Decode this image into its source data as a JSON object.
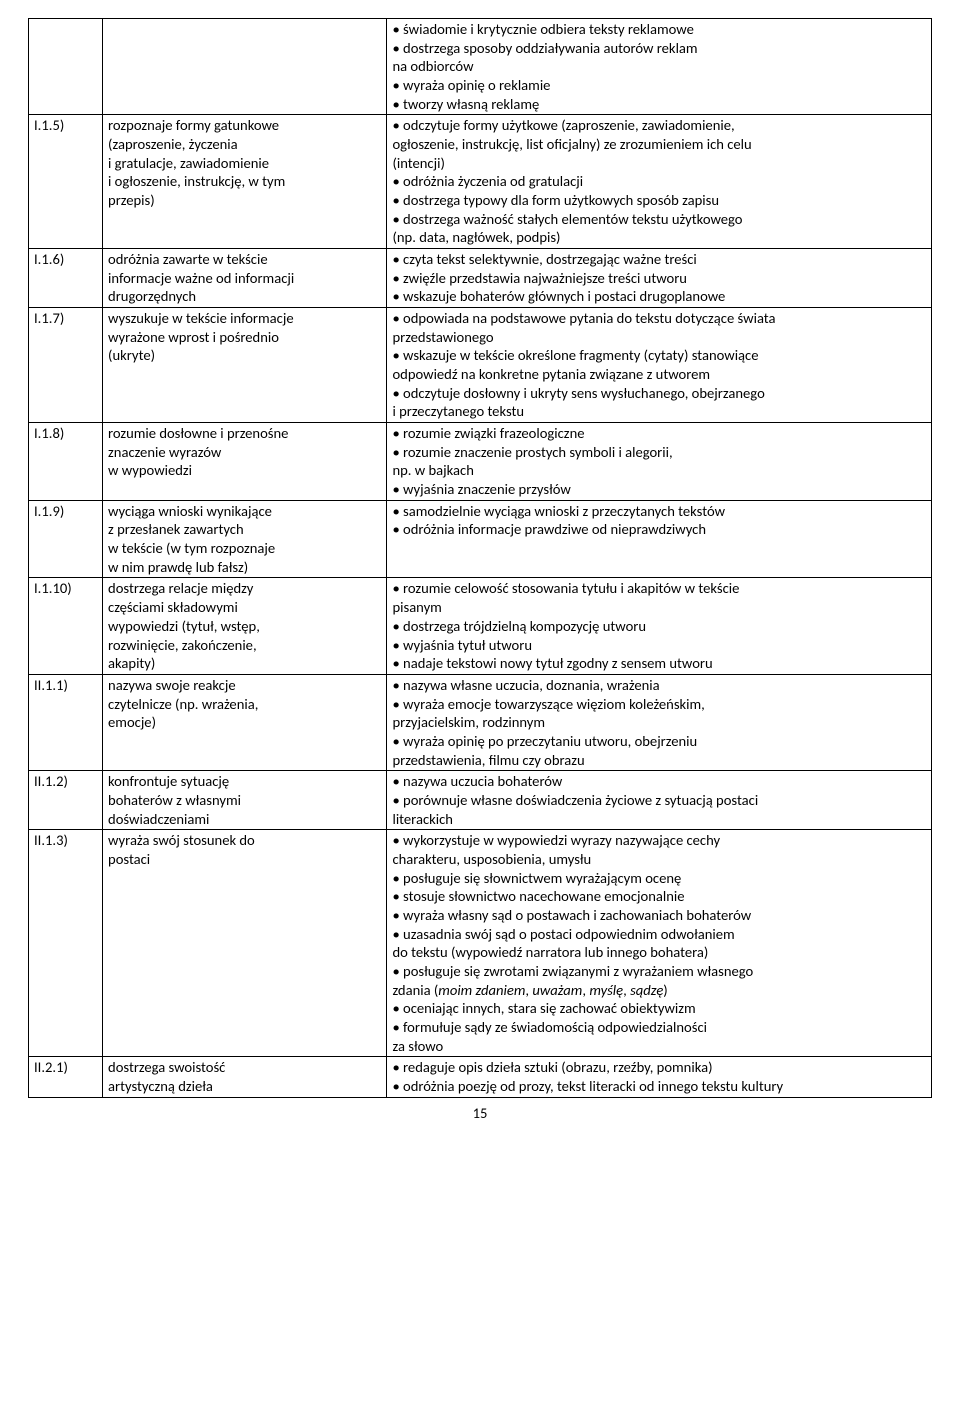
{
  "page_number": "15",
  "rows": [
    {
      "code": "",
      "col_b": [],
      "col_c": [
        {
          "t": "b",
          "text": "• świadomie i krytycznie odbiera teksty reklamowe"
        },
        {
          "t": "b",
          "text": "• dostrzega sposoby oddziaływania autorów reklam"
        },
        {
          "t": "p",
          "text": "na odbiorców"
        },
        {
          "t": "b",
          "text": "• wyraża opinię o reklamie"
        },
        {
          "t": "b",
          "text": "• tworzy własną reklamę"
        }
      ]
    },
    {
      "code": "I.1.5)",
      "col_b": [
        {
          "t": "p",
          "text": "rozpoznaje formy gatunkowe"
        },
        {
          "t": "p",
          "text": "(zaproszenie, życzenia"
        },
        {
          "t": "p",
          "text": "i gratulacje, zawiadomienie"
        },
        {
          "t": "p",
          "text": "i ogłoszenie, instrukcję, w tym"
        },
        {
          "t": "p",
          "text": "przepis)"
        }
      ],
      "col_c": [
        {
          "t": "b",
          "text": "• odczytuje formy użytkowe (zaproszenie, zawiadomienie,"
        },
        {
          "t": "p",
          "text": "ogłoszenie, instrukcję, list oficjalny) ze zrozumieniem ich celu"
        },
        {
          "t": "p",
          "text": "(intencji)"
        },
        {
          "t": "b",
          "text": "• odróżnia życzenia od gratulacji"
        },
        {
          "t": "b",
          "text": "• dostrzega typowy dla form użytkowych sposób zapisu"
        },
        {
          "t": "b",
          "text": "• dostrzega ważność stałych elementów tekstu użytkowego"
        },
        {
          "t": "p",
          "text": "(np. data, nagłówek, podpis)"
        }
      ]
    },
    {
      "code": "I.1.6)",
      "col_b": [
        {
          "t": "p",
          "text": "odróżnia zawarte w tekście"
        },
        {
          "t": "p",
          "text": "informacje ważne od informacji"
        },
        {
          "t": "p",
          "text": "drugorzędnych"
        }
      ],
      "col_c": [
        {
          "t": "b",
          "text": "• czyta tekst selektywnie, dostrzegając ważne treści"
        },
        {
          "t": "b",
          "text": "• zwięźle przedstawia najważniejsze treści utworu"
        },
        {
          "t": "b",
          "text": "• wskazuje bohaterów głównych i postaci drugoplanowe"
        }
      ]
    },
    {
      "code": "I.1.7)",
      "col_b": [
        {
          "t": "p",
          "text": "wyszukuje w tekście informacje"
        },
        {
          "t": "p",
          "text": "wyrażone wprost i pośrednio"
        },
        {
          "t": "p",
          "text": "(ukryte)"
        }
      ],
      "col_c": [
        {
          "t": "b",
          "text": "• odpowiada na podstawowe pytania do tekstu dotyczące świata"
        },
        {
          "t": "p",
          "text": "przedstawionego"
        },
        {
          "t": "b",
          "text": "• wskazuje w tekście określone fragmenty (cytaty) stanowiące"
        },
        {
          "t": "p",
          "text": "odpowiedź na konkretne pytania związane z utworem"
        },
        {
          "t": "b",
          "text": "• odczytuje dosłowny i ukryty sens wysłuchanego, obejrzanego"
        },
        {
          "t": "p",
          "text": "i przeczytanego tekstu"
        }
      ]
    },
    {
      "code": "I.1.8)",
      "col_b": [
        {
          "t": "p",
          "text": "rozumie dosłowne i przenośne"
        },
        {
          "t": "p",
          "text": "znaczenie wyrazów"
        },
        {
          "t": "p",
          "text": "w wypowiedzi"
        }
      ],
      "col_c": [
        {
          "t": "b",
          "text": "• rozumie związki frazeologiczne"
        },
        {
          "t": "b",
          "text": "• rozumie znaczenie prostych symboli i alegorii,"
        },
        {
          "t": "p",
          "text": "np. w bajkach"
        },
        {
          "t": "b",
          "text": "• wyjaśnia znaczenie przysłów"
        }
      ]
    },
    {
      "code": "I.1.9)",
      "col_b": [
        {
          "t": "p",
          "text": "wyciąga wnioski wynikające"
        },
        {
          "t": "p",
          "text": "z przesłanek zawartych"
        },
        {
          "t": "p",
          "text": "w tekście (w tym rozpoznaje"
        },
        {
          "t": "p",
          "text": "w nim prawdę lub fałsz)"
        }
      ],
      "col_c": [
        {
          "t": "b",
          "text": "• samodzielnie wyciąga wnioski z przeczytanych tekstów"
        },
        {
          "t": "b",
          "text": "• odróżnia informacje prawdziwe od nieprawdziwych"
        }
      ]
    },
    {
      "code": "I.1.10)",
      "col_b": [
        {
          "t": "p",
          "text": "dostrzega relacje między"
        },
        {
          "t": "p",
          "text": "częściami składowymi"
        },
        {
          "t": "p",
          "text": "wypowiedzi (tytuł, wstęp,"
        },
        {
          "t": "p",
          "text": "rozwinięcie, zakończenie,"
        },
        {
          "t": "p",
          "text": "akapity)"
        }
      ],
      "col_c": [
        {
          "t": "b",
          "text": "• rozumie celowość stosowania tytułu i akapitów w tekście"
        },
        {
          "t": "p",
          "text": "pisanym"
        },
        {
          "t": "b",
          "text": "• dostrzega trójdzielną kompozycję utworu"
        },
        {
          "t": "b",
          "text": "• wyjaśnia tytuł utworu"
        },
        {
          "t": "b",
          "text": "• nadaje tekstowi nowy tytuł zgodny z sensem utworu"
        }
      ]
    },
    {
      "code": "II.1.1)",
      "col_b": [
        {
          "t": "p",
          "text": "nazywa swoje reakcje"
        },
        {
          "t": "p",
          "text": "czytelnicze (np. wrażenia,"
        },
        {
          "t": "p",
          "text": "emocje)"
        }
      ],
      "col_c": [
        {
          "t": "b",
          "text": "• nazywa własne uczucia, doznania, wrażenia"
        },
        {
          "t": "b",
          "text": "• wyraża emocje towarzyszące więziom koleżeńskim,"
        },
        {
          "t": "p",
          "text": "przyjacielskim, rodzinnym"
        },
        {
          "t": "b",
          "text": "• wyraża opinię po przeczytaniu utworu, obejrzeniu"
        },
        {
          "t": "p",
          "text": "przedstawienia, filmu czy obrazu"
        }
      ]
    },
    {
      "code": "II.1.2)",
      "col_b": [
        {
          "t": "p",
          "text": "konfrontuje sytuację"
        },
        {
          "t": "p",
          "text": "bohaterów z własnymi"
        },
        {
          "t": "p",
          "text": "doświadczeniami"
        }
      ],
      "col_c": [
        {
          "t": "b",
          "text": "• nazywa uczucia bohaterów"
        },
        {
          "t": "b",
          "text": "• porównuje własne doświadczenia życiowe z sytuacją postaci"
        },
        {
          "t": "p",
          "text": "literackich"
        }
      ]
    },
    {
      "code": "II.1.3)",
      "col_b": [
        {
          "t": "p",
          "text": "wyraża swój stosunek do"
        },
        {
          "t": "p",
          "text": "postaci"
        }
      ],
      "col_c": [
        {
          "t": "b",
          "text": "• wykorzystuje w wypowiedzi wyrazy nazywające cechy"
        },
        {
          "t": "p",
          "text": "charakteru, usposobienia, umysłu"
        },
        {
          "t": "b",
          "text": "• posługuje się słownictwem wyrażającym ocenę"
        },
        {
          "t": "b",
          "text": "• stosuje słownictwo nacechowane emocjonalnie"
        },
        {
          "t": "b",
          "text": "• wyraża własny sąd o postawach i zachowaniach bohaterów"
        },
        {
          "t": "b",
          "text": "• uzasadnia swój sąd o postaci odpowiednim odwołaniem"
        },
        {
          "t": "p",
          "text": "do tekstu (wypowiedź narratora lub innego bohatera)"
        },
        {
          "t": "b",
          "text": "• posługuje się zwrotami związanymi z wyrażaniem własnego"
        },
        {
          "t": "p",
          "html": "zdania (<em class=\"ital\">moim zdaniem</em>, <em class=\"ital\">uważam</em>, <em class=\"ital\">myślę</em>, <em class=\"ital\">sądzę</em>)"
        },
        {
          "t": "b",
          "text": "• oceniając innych, stara się zachować obiektywizm"
        },
        {
          "t": "b",
          "text": "• formułuje sądy ze świadomością odpowiedzialności"
        },
        {
          "t": "p",
          "text": "za słowo"
        }
      ]
    },
    {
      "code": "II.2.1)",
      "col_b": [
        {
          "t": "p",
          "text": "dostrzega swoistość"
        },
        {
          "t": "p",
          "text": "artystyczną dzieła"
        }
      ],
      "col_c": [
        {
          "t": "b",
          "text": "• redaguje opis dzieła sztuki (obrazu, rzeźby, pomnika)"
        },
        {
          "t": "b",
          "text": "• odróżnia poezję od prozy, tekst literacki od innego tekstu kultury"
        }
      ]
    }
  ]
}
